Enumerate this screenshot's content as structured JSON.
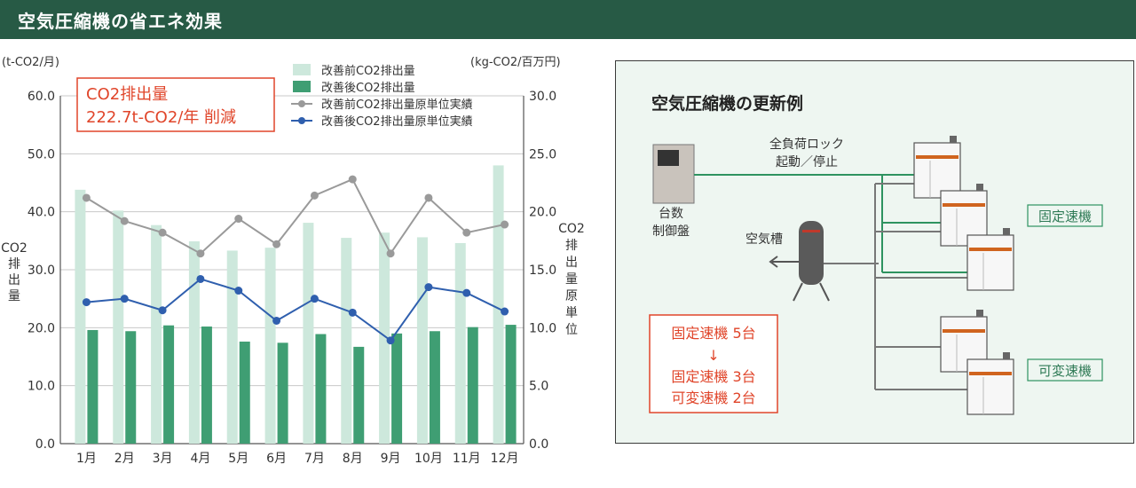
{
  "header": {
    "title": "空気圧縮機の省エネ効果"
  },
  "chart_data": {
    "type": "bar",
    "categories": [
      "1月",
      "2月",
      "3月",
      "4月",
      "5月",
      "6月",
      "7月",
      "8月",
      "9月",
      "10月",
      "11月",
      "12月"
    ],
    "series": [
      {
        "name": "改善前CO2排出量",
        "type": "bar",
        "axis": "left",
        "color": "#cde8dc",
        "values": [
          43.8,
          40.2,
          37.7,
          34.9,
          33.3,
          33.8,
          38.1,
          35.5,
          36.4,
          35.6,
          34.6,
          48.0
        ]
      },
      {
        "name": "改善後CO2排出量",
        "type": "bar",
        "axis": "left",
        "color": "#3f9e73",
        "values": [
          19.6,
          19.4,
          20.4,
          20.2,
          17.6,
          17.4,
          18.9,
          16.7,
          19.0,
          19.4,
          20.1,
          20.5
        ]
      },
      {
        "name": "改善前CO2排出量原単位実績",
        "type": "line",
        "axis": "right",
        "color": "#9a9a9a",
        "values": [
          21.2,
          19.2,
          18.2,
          16.4,
          19.4,
          17.2,
          21.4,
          22.8,
          16.4,
          21.2,
          18.2,
          18.9
        ]
      },
      {
        "name": "改善後CO2排出量原単位実績",
        "type": "line",
        "axis": "right",
        "color": "#2f5fae",
        "values": [
          12.2,
          12.5,
          11.5,
          14.2,
          13.2,
          10.6,
          12.5,
          11.3,
          8.9,
          13.5,
          13.0,
          11.4
        ]
      }
    ],
    "left_axis": {
      "unit": "(t-CO2/月)",
      "label": "CO2排出量",
      "ylim": [
        0,
        60
      ],
      "ticks": [
        "0.0",
        "10.0",
        "20.0",
        "30.0",
        "40.0",
        "50.0",
        "60.0"
      ]
    },
    "right_axis": {
      "unit": "(kg-CO2/百万円)",
      "label": "CO2排出量原単位",
      "ylim": [
        0,
        30
      ],
      "ticks": [
        "0.0",
        "5.0",
        "10.0",
        "15.0",
        "20.0",
        "25.0",
        "30.0"
      ]
    },
    "grid": true,
    "legend_position": "top-right",
    "annotation": {
      "line1": "CO2排出量",
      "line2": "222.7t-CO2/年 削減",
      "color": "#e0452a"
    }
  },
  "example": {
    "title": "空気圧縮機の更新例",
    "controller_label_1": "台数",
    "controller_label_2": "制御盤",
    "tank_label": "空気槽",
    "command_label_1": "全負荷ロック",
    "command_label_2": "起動／停止",
    "fixed_label": "固定速機",
    "variable_label": "可変速機",
    "change_line1": "固定速機  5台",
    "arrow": "↓",
    "change_line2": "固定速機  3台",
    "change_line3": "可変速機  2台"
  }
}
